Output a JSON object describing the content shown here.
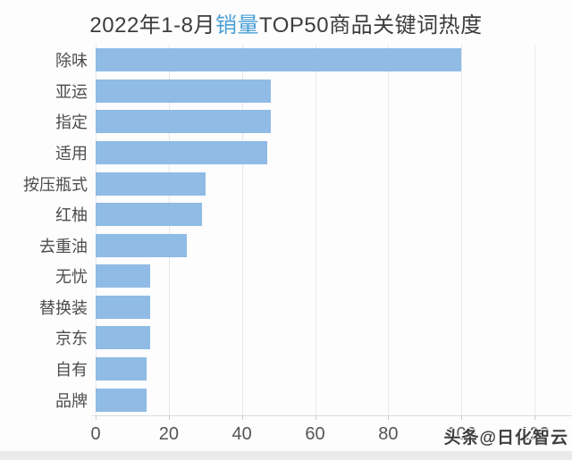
{
  "title": {
    "prefix": "2022年1-8月",
    "highlight": "销量",
    "suffix": "TOP50商品关键词热度"
  },
  "watermark": "头条@日化智云",
  "chart_data": {
    "type": "bar",
    "orientation": "horizontal",
    "title": "2022年1-8月销量TOP50商品关键词热度",
    "categories": [
      "除味",
      "亚运",
      "指定",
      "适用",
      "按压瓶式",
      "红柚",
      "去重油",
      "无忧",
      "替换装",
      "京东",
      "自有",
      "品牌"
    ],
    "values": [
      100,
      48,
      48,
      47,
      30,
      29,
      25,
      15,
      15,
      15,
      14,
      14
    ],
    "xlabel": "",
    "ylabel": "",
    "xlim": [
      0,
      120
    ],
    "x_ticks": [
      0,
      20,
      40,
      60,
      80,
      100,
      120
    ],
    "grid": true,
    "legend": false,
    "bar_color": "#8fbbe5"
  },
  "colors": {
    "title_text": "#3d3d3d",
    "title_highlight": "#4a9ed5",
    "bar": "#8fbbe5",
    "category_label": "#4c4c4c",
    "tick_label": "#555555",
    "gridline": "#e5e7ea",
    "axis_line": "#d9dbde",
    "watermark_text": "#3f3f3f",
    "bottom_strip": "#eaeaea"
  }
}
